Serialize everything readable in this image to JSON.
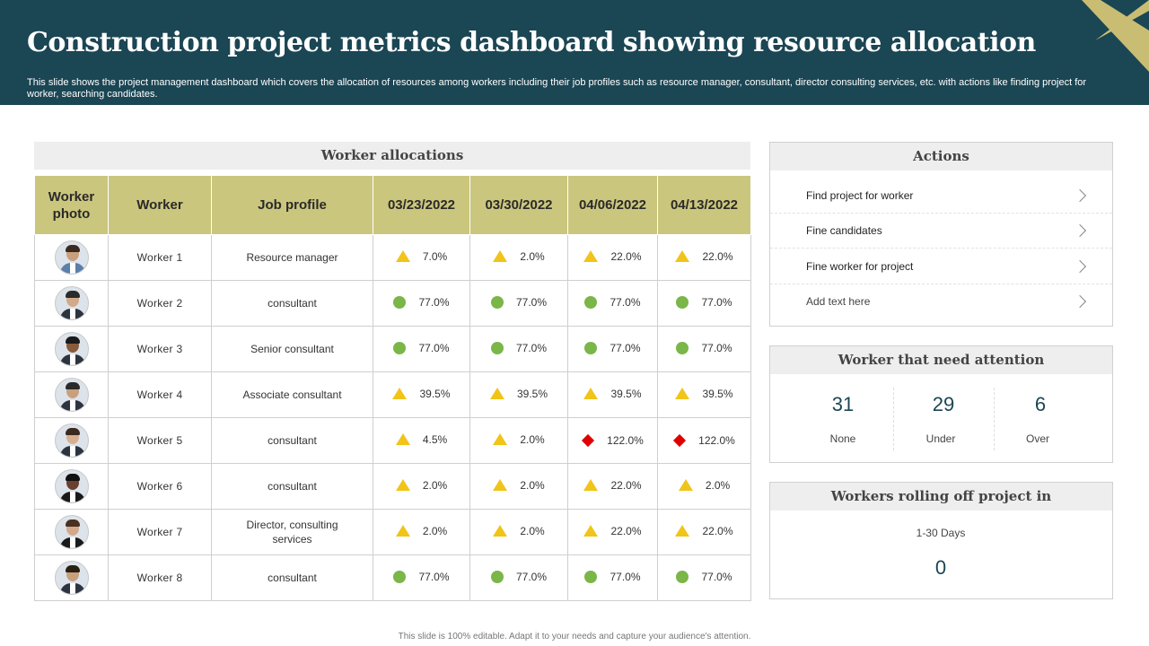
{
  "header": {
    "title": "Construction project metrics dashboard showing resource allocation",
    "subtitle": "This slide shows the project management dashboard which covers the allocation of resources among workers including their job profiles such as resource manager, consultant, director consulting services, etc. with actions like finding project for worker, searching candidates."
  },
  "allocations": {
    "title": "Worker allocations",
    "columns": [
      "Worker photo",
      "Worker",
      "Job profile",
      "03/23/2022",
      "03/30/2022",
      "04/06/2022",
      "04/13/2022"
    ],
    "rows": [
      {
        "worker": "Worker  1",
        "profile": "Resource manager",
        "values": [
          "7.0%",
          "2.0%",
          "22.0%",
          "22.0%"
        ],
        "status": [
          "triangle",
          "triangle",
          "triangle",
          "triangle"
        ]
      },
      {
        "worker": "Worker  2",
        "profile": "consultant",
        "values": [
          "77.0%",
          "77.0%",
          "77.0%",
          "77.0%"
        ],
        "status": [
          "circle",
          "circle",
          "circle",
          "circle"
        ]
      },
      {
        "worker": "Worker  3",
        "profile": "Senior consultant",
        "values": [
          "77.0%",
          "77.0%",
          "77.0%",
          "77.0%"
        ],
        "status": [
          "circle",
          "circle",
          "circle",
          "circle"
        ]
      },
      {
        "worker": "Worker  4",
        "profile": "Associate consultant",
        "values": [
          "39.5%",
          "39.5%",
          "39.5%",
          "39.5%"
        ],
        "status": [
          "triangle",
          "triangle",
          "triangle",
          "triangle"
        ]
      },
      {
        "worker": "Worker 5",
        "profile": "consultant",
        "values": [
          "4.5%",
          "2.0%",
          "122.0%",
          "122.0%"
        ],
        "status": [
          "triangle",
          "triangle",
          "diamond",
          "diamond"
        ]
      },
      {
        "worker": "Worker 6",
        "profile": "consultant",
        "values": [
          "2.0%",
          "2.0%",
          "22.0%",
          "2.0%"
        ],
        "status": [
          "triangle",
          "triangle",
          "triangle",
          "triangle"
        ]
      },
      {
        "worker": "Worker 7",
        "profile": "Director, consulting services",
        "values": [
          "2.0%",
          "2.0%",
          "22.0%",
          "22.0%"
        ],
        "status": [
          "triangle",
          "triangle",
          "triangle",
          "triangle"
        ]
      },
      {
        "worker": "Worker 8",
        "profile": "consultant",
        "values": [
          "77.0%",
          "77.0%",
          "77.0%",
          "77.0%"
        ],
        "status": [
          "circle",
          "circle",
          "circle",
          "circle"
        ]
      }
    ]
  },
  "actions": {
    "title": "Actions",
    "items": [
      "Find project for worker",
      "Fine candidates",
      "Fine worker for project",
      "Add text here"
    ]
  },
  "attention": {
    "title": "Worker that need attention",
    "stats": [
      {
        "value": "31",
        "label": "None"
      },
      {
        "value": "29",
        "label": "Under"
      },
      {
        "value": "6",
        "label": "Over"
      }
    ]
  },
  "rolling": {
    "title": "Workers rolling off project in",
    "range_label": "1-30 Days",
    "value": "0"
  },
  "footer": "This slide is 100% editable. Adapt it to your needs and capture your audience's attention.",
  "colors": {
    "header_bg": "#1b4654",
    "table_header": "#cbc67d",
    "accent_gold": "#c8bd73",
    "ok_green": "#7ab648",
    "warn_yellow": "#f0c419",
    "alert_red": "#e00000"
  }
}
